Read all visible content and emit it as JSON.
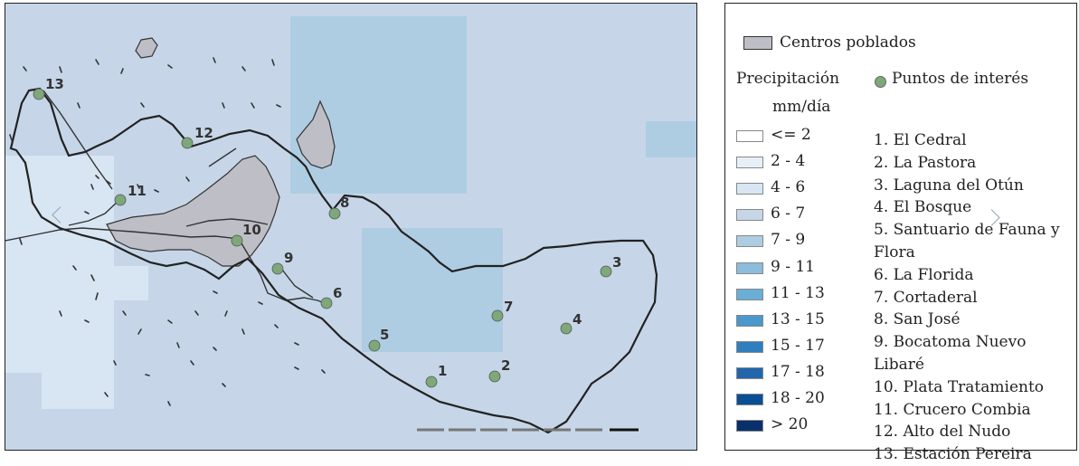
{
  "legend": {
    "centros_label": "Centros poblados",
    "precip_title": "Precipitación",
    "precip_unit": "mm/día",
    "ranges": [
      {
        "label": "<= 2",
        "color": "#ffffff"
      },
      {
        "label": "2 - 4",
        "color": "#e7f0f9"
      },
      {
        "label": "4 - 6",
        "color": "#d8e6f3"
      },
      {
        "label": "6 - 7",
        "color": "#c6d6e8"
      },
      {
        "label": "7 - 9",
        "color": "#aecde2"
      },
      {
        "label": "9 - 11",
        "color": "#8cbddc"
      },
      {
        "label": "11 - 13",
        "color": "#6baed6"
      },
      {
        "label": "13 - 15",
        "color": "#4a98cc"
      },
      {
        "label": "15 - 17",
        "color": "#2f7fbf"
      },
      {
        "label": "17 - 18",
        "color": "#2166ac"
      },
      {
        "label": "18 - 20",
        "color": "#084f96"
      },
      {
        "label": "> 20",
        "color": "#08306b"
      }
    ],
    "poi_title": "Puntos de interés",
    "points": [
      "1. El Cedral",
      "2. La Pastora",
      "3. Laguna del Otún",
      "4. El Bosque",
      "5. Santuario de Fauna y Flora",
      "6. La Florida",
      "7. Cortaderal",
      "8. San José",
      "9. Bocatoma Nuevo Libaré",
      "10. Plata Tratamiento",
      "11. Crucero Combia",
      "12. Alto del Nudo",
      "13. Estación Pereira"
    ]
  },
  "map": {
    "point_labels": [
      "1",
      "2",
      "3",
      "4",
      "5",
      "6",
      "7",
      "8",
      "9",
      "10",
      "11",
      "12",
      "13"
    ],
    "point_color": "#7ea87a",
    "settlement_color": "#bdbec6"
  }
}
